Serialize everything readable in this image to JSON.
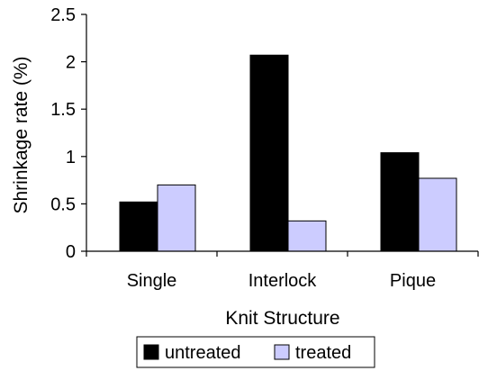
{
  "chart_data": {
    "type": "bar",
    "title": "",
    "xlabel": "Knit Structure",
    "ylabel": "Shrinkage rate (%)",
    "ylim": [
      0,
      2.5
    ],
    "yticks": [
      "0",
      "0.5",
      "1",
      "1.5",
      "2",
      "2.5"
    ],
    "categories": [
      "Single",
      "Interlock",
      "Pique"
    ],
    "series": [
      {
        "name": "untreated",
        "values": [
          0.52,
          2.07,
          1.04
        ],
        "color": "#000000"
      },
      {
        "name": "treated",
        "values": [
          0.7,
          0.32,
          0.77
        ],
        "color": "#ccccff"
      }
    ],
    "grid": false,
    "legend_position": "bottom"
  }
}
